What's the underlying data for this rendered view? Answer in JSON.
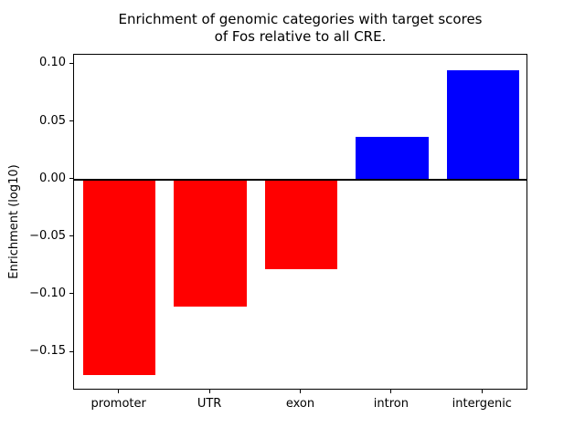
{
  "chart_data": {
    "type": "bar",
    "title": "Enrichment of genomic categories with target scores\nof Fos relative to all CRE.",
    "xlabel": "",
    "ylabel": "Enrichment (log10)",
    "categories": [
      "promoter",
      "UTR",
      "exon",
      "intron",
      "intergenic"
    ],
    "values": [
      -0.17,
      -0.11,
      -0.078,
      0.037,
      0.095
    ],
    "bar_colors": [
      "#ff0000",
      "#ff0000",
      "#ff0000",
      "#0000ff",
      "#0000ff"
    ],
    "yticks": [
      0.1,
      0.05,
      0.0,
      -0.05,
      -0.1,
      -0.15
    ],
    "ylim": [
      -0.18325,
      0.10825
    ],
    "grid": false,
    "legend": null,
    "zero_line": true,
    "negative_color": "#ff0000",
    "positive_color": "#0000ff"
  }
}
